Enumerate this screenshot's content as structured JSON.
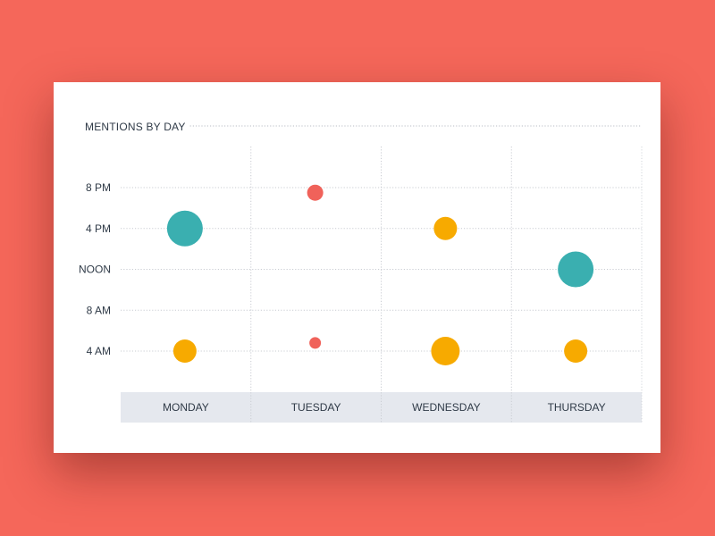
{
  "colors": {
    "background": "#f5675a",
    "card": "#ffffff",
    "axis_band": "#e5e8ee",
    "gridline": "#c9ccd2",
    "text": "#2f3a47"
  },
  "chart_data": {
    "type": "scatter",
    "title": "MENTIONS BY DAY",
    "xlabel": "",
    "ylabel": "",
    "categories": [
      "MONDAY",
      "TUESDAY",
      "WEDNESDAY",
      "THURSDAY"
    ],
    "y_ticks": [
      {
        "value": 4,
        "label": "4 AM"
      },
      {
        "value": 8,
        "label": "8 AM"
      },
      {
        "value": 12,
        "label": "NOON"
      },
      {
        "value": 16,
        "label": "4 PM"
      },
      {
        "value": 20,
        "label": "8 PM"
      }
    ],
    "ylim": [
      0,
      24
    ],
    "grid": true,
    "points": [
      {
        "day": "MONDAY",
        "hour": 16,
        "size": 5,
        "color": "#3aafb0"
      },
      {
        "day": "MONDAY",
        "hour": 4,
        "size": 3,
        "color": "#f7aa00"
      },
      {
        "day": "TUESDAY",
        "hour": 19.5,
        "size": 2,
        "color": "#f0625a"
      },
      {
        "day": "TUESDAY",
        "hour": 4.8,
        "size": 1,
        "color": "#f0625a"
      },
      {
        "day": "WEDNESDAY",
        "hour": 16,
        "size": 3,
        "color": "#f7aa00"
      },
      {
        "day": "WEDNESDAY",
        "hour": 4,
        "size": 4,
        "color": "#f7aa00"
      },
      {
        "day": "THURSDAY",
        "hour": 12,
        "size": 5,
        "color": "#3aafb0"
      },
      {
        "day": "THURSDAY",
        "hour": 4,
        "size": 3,
        "color": "#f7aa00"
      }
    ]
  }
}
